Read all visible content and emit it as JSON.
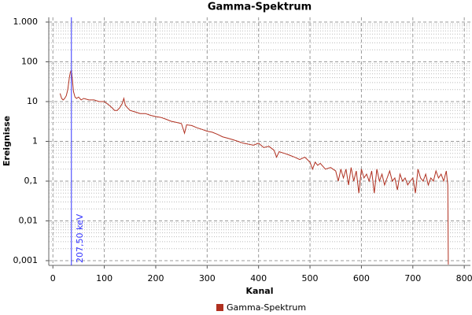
{
  "chart_data": {
    "type": "line",
    "title": "Gamma-Spektrum",
    "x_label": "Kanal",
    "y_label": "Ereignisse",
    "xlim": [
      -8,
      812
    ],
    "xticks": [
      0,
      100,
      200,
      300,
      400,
      500,
      600,
      700,
      800
    ],
    "ylim": [
      0.00076,
      1315
    ],
    "log_y": true,
    "grid": true,
    "yticks": [
      {
        "value": 0.001,
        "label": "0,001"
      },
      {
        "value": 0.01,
        "label": "0,01"
      },
      {
        "value": 0.1,
        "label": "0,1"
      },
      1,
      10,
      100,
      {
        "value": 1000,
        "label": "1.000"
      }
    ],
    "legend": "bottom",
    "annotation": {
      "x": 36,
      "label": "207,50 keV",
      "color": "#3333ff"
    },
    "x": [
      14,
      17,
      20,
      23,
      26,
      29,
      32,
      34,
      36,
      38,
      40,
      43,
      46,
      50,
      55,
      60,
      70,
      80,
      90,
      100,
      110,
      115,
      120,
      125,
      130,
      135,
      138,
      141,
      145,
      150,
      160,
      170,
      180,
      190,
      200,
      210,
      220,
      230,
      240,
      250,
      256,
      260,
      270,
      280,
      290,
      300,
      310,
      320,
      330,
      340,
      350,
      360,
      370,
      380,
      390,
      400,
      410,
      420,
      430,
      435,
      440,
      450,
      460,
      470,
      480,
      490,
      500,
      505,
      510,
      515,
      520,
      530,
      540,
      550,
      555,
      560,
      565,
      570,
      575,
      580,
      585,
      590,
      595,
      600,
      605,
      610,
      615,
      620,
      625,
      630,
      635,
      640,
      645,
      650,
      655,
      660,
      665,
      670,
      675,
      680,
      685,
      690,
      695,
      700,
      705,
      710,
      715,
      720,
      725,
      730,
      735,
      740,
      745,
      750,
      755,
      760,
      765,
      768,
      769
    ],
    "series": [
      {
        "name": "Gamma-Spektrum",
        "color": "#b03020",
        "values": [
          16,
          12,
          11,
          12,
          14,
          20,
          40,
          55,
          60,
          35,
          18,
          13,
          12,
          13,
          11,
          12,
          11,
          11,
          10,
          10,
          8,
          7,
          6,
          6,
          7,
          9,
          12,
          8,
          7,
          6,
          5.5,
          5,
          5,
          4.5,
          4.2,
          4,
          3.6,
          3.2,
          3,
          2.8,
          1.6,
          2.6,
          2.5,
          2.2,
          2,
          1.8,
          1.7,
          1.5,
          1.3,
          1.2,
          1.1,
          1,
          0.9,
          0.85,
          0.8,
          0.9,
          0.7,
          0.75,
          0.6,
          0.4,
          0.55,
          0.5,
          0.45,
          0.4,
          0.35,
          0.4,
          0.3,
          0.2,
          0.3,
          0.25,
          0.28,
          0.2,
          0.22,
          0.18,
          0.1,
          0.2,
          0.12,
          0.2,
          0.08,
          0.22,
          0.1,
          0.18,
          0.05,
          0.2,
          0.12,
          0.15,
          0.1,
          0.18,
          0.05,
          0.2,
          0.1,
          0.15,
          0.08,
          0.12,
          0.18,
          0.1,
          0.12,
          0.06,
          0.15,
          0.1,
          0.12,
          0.08,
          0.1,
          0.12,
          0.05,
          0.2,
          0.12,
          0.1,
          0.15,
          0.08,
          0.12,
          0.1,
          0.18,
          0.12,
          0.15,
          0.1,
          0.18,
          0.08,
          0.0008
        ]
      }
    ]
  }
}
